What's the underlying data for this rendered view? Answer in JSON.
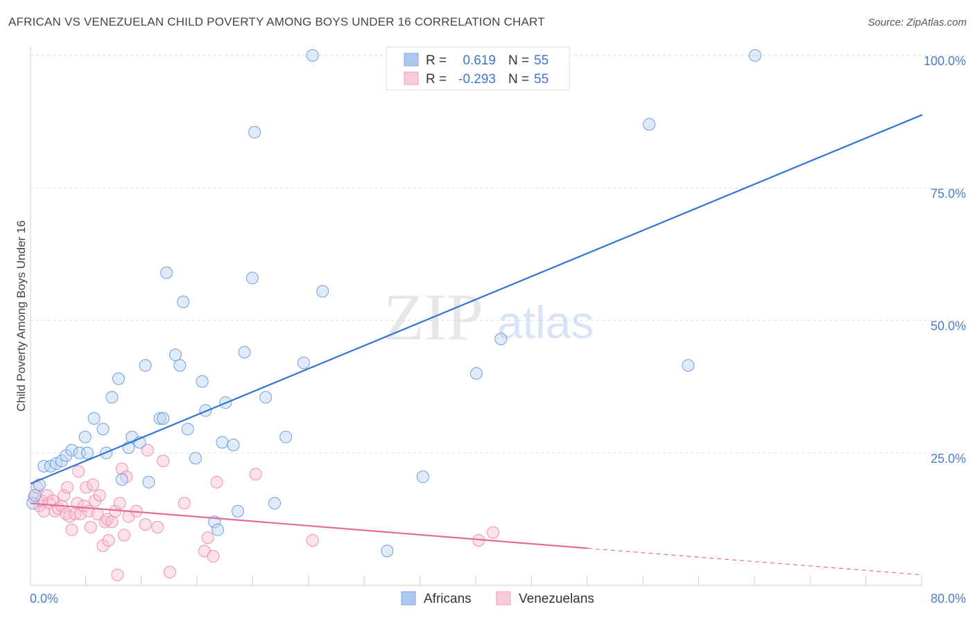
{
  "header": {
    "title": "AFRICAN VS VENEZUELAN CHILD POVERTY AMONG BOYS UNDER 16 CORRELATION CHART",
    "source": "Source: ZipAtlas.com"
  },
  "watermark": {
    "zip": "ZIP",
    "atlas": "atlas"
  },
  "legend": {
    "rows": [
      {
        "r_label": "R =",
        "r_value": "0.619",
        "n_label": "N =",
        "n_value": "55",
        "color": "#aac8f0"
      },
      {
        "r_label": "R =",
        "r_value": "-0.293",
        "n_label": "N =",
        "n_value": "55",
        "color": "#f6b7cb"
      }
    ]
  },
  "bottom_legend": {
    "africans": "Africans",
    "venezuelans": "Venezuelans"
  },
  "chart_data": {
    "type": "scatter",
    "title": "AFRICAN VS VENEZUELAN CHILD POVERTY AMONG BOYS UNDER 16 CORRELATION CHART",
    "xlabel": "",
    "ylabel": "Child Poverty Among Boys Under 16",
    "xlim": [
      0,
      80
    ],
    "ylim": [
      0,
      105
    ],
    "x_tick_labels": [
      "0.0%",
      "80.0%"
    ],
    "y_tick_labels": [
      "25.0%",
      "50.0%",
      "75.0%",
      "100.0%"
    ],
    "y_ticks": [
      25,
      50,
      75,
      100
    ],
    "grid": true,
    "legend_position": "top-center",
    "series": [
      {
        "name": "Africans",
        "color": "#7aa6e0",
        "trend_color": "#2f74d0",
        "R": 0.619,
        "N": 55,
        "trend": {
          "x": [
            0,
            80
          ],
          "y": [
            19.2,
            88.8
          ]
        },
        "points": [
          [
            0.2,
            15.5
          ],
          [
            0.4,
            17.0
          ],
          [
            0.8,
            19.0
          ],
          [
            1.2,
            22.5
          ],
          [
            1.8,
            22.5
          ],
          [
            2.3,
            23.0
          ],
          [
            2.8,
            23.5
          ],
          [
            3.2,
            24.5
          ],
          [
            3.7,
            25.5
          ],
          [
            4.4,
            25.0
          ],
          [
            5.1,
            25.0
          ],
          [
            4.9,
            28.0
          ],
          [
            5.7,
            31.5
          ],
          [
            6.5,
            29.5
          ],
          [
            6.8,
            25.0
          ],
          [
            7.3,
            35.5
          ],
          [
            7.9,
            39.0
          ],
          [
            8.2,
            20.0
          ],
          [
            8.8,
            26.0
          ],
          [
            9.1,
            28.0
          ],
          [
            9.8,
            27.0
          ],
          [
            10.3,
            41.5
          ],
          [
            10.6,
            19.5
          ],
          [
            11.6,
            31.5
          ],
          [
            11.9,
            31.5
          ],
          [
            12.2,
            59.0
          ],
          [
            13.0,
            43.5
          ],
          [
            13.4,
            41.5
          ],
          [
            13.7,
            53.5
          ],
          [
            14.1,
            29.5
          ],
          [
            14.8,
            24.0
          ],
          [
            15.4,
            38.5
          ],
          [
            15.7,
            33.0
          ],
          [
            16.5,
            12.0
          ],
          [
            16.8,
            10.5
          ],
          [
            17.2,
            27.0
          ],
          [
            17.5,
            34.5
          ],
          [
            18.2,
            26.5
          ],
          [
            18.6,
            14.0
          ],
          [
            19.2,
            44.0
          ],
          [
            19.9,
            58.0
          ],
          [
            20.1,
            85.5
          ],
          [
            21.1,
            35.5
          ],
          [
            21.9,
            15.5
          ],
          [
            22.9,
            28.0
          ],
          [
            24.5,
            42.0
          ],
          [
            25.3,
            100.0
          ],
          [
            26.2,
            55.5
          ],
          [
            32.0,
            6.5
          ],
          [
            35.2,
            20.5
          ],
          [
            40.0,
            40.0
          ],
          [
            42.2,
            46.5
          ],
          [
            55.5,
            87.0
          ],
          [
            59.0,
            41.5
          ],
          [
            65.0,
            100.0
          ]
        ]
      },
      {
        "name": "Venezuelans",
        "color": "#f19cb8",
        "trend_color": "#e46b95",
        "R": -0.293,
        "N": 55,
        "trend": {
          "x": [
            0,
            50
          ],
          "y": [
            15.5,
            7.0
          ]
        },
        "trend_dashed": {
          "x": [
            50,
            80
          ],
          "y": [
            7.0,
            2.0
          ]
        },
        "points": [
          [
            0.3,
            16.5
          ],
          [
            0.6,
            18.5
          ],
          [
            0.8,
            15.0
          ],
          [
            1.0,
            16.0
          ],
          [
            1.2,
            14.0
          ],
          [
            1.5,
            17.0
          ],
          [
            1.7,
            15.5
          ],
          [
            2.0,
            16.0
          ],
          [
            2.2,
            14.0
          ],
          [
            2.5,
            14.5
          ],
          [
            2.8,
            15.0
          ],
          [
            3.0,
            17.0
          ],
          [
            3.2,
            13.5
          ],
          [
            3.3,
            18.5
          ],
          [
            3.5,
            13.0
          ],
          [
            3.7,
            10.5
          ],
          [
            4.0,
            13.5
          ],
          [
            4.2,
            15.5
          ],
          [
            4.3,
            21.5
          ],
          [
            4.5,
            13.5
          ],
          [
            4.8,
            15.0
          ],
          [
            5.0,
            18.5
          ],
          [
            5.2,
            14.0
          ],
          [
            5.4,
            11.0
          ],
          [
            5.6,
            19.0
          ],
          [
            5.8,
            16.0
          ],
          [
            6.0,
            13.5
          ],
          [
            6.2,
            17.0
          ],
          [
            6.5,
            7.5
          ],
          [
            6.7,
            12.0
          ],
          [
            6.9,
            12.5
          ],
          [
            7.0,
            8.5
          ],
          [
            7.3,
            12.0
          ],
          [
            7.6,
            14.0
          ],
          [
            7.8,
            2.0
          ],
          [
            8.0,
            15.5
          ],
          [
            8.2,
            22.0
          ],
          [
            8.4,
            9.5
          ],
          [
            8.6,
            20.5
          ],
          [
            8.8,
            13.0
          ],
          [
            10.3,
            11.5
          ],
          [
            10.5,
            25.5
          ],
          [
            11.4,
            11.0
          ],
          [
            11.9,
            23.5
          ],
          [
            12.5,
            2.5
          ],
          [
            13.8,
            15.5
          ],
          [
            15.6,
            6.5
          ],
          [
            15.9,
            9.0
          ],
          [
            16.4,
            5.5
          ],
          [
            16.7,
            19.5
          ],
          [
            20.2,
            21.0
          ],
          [
            25.3,
            8.5
          ],
          [
            40.2,
            8.5
          ],
          [
            41.5,
            10.0
          ],
          [
            9.5,
            14.0
          ]
        ]
      }
    ]
  }
}
